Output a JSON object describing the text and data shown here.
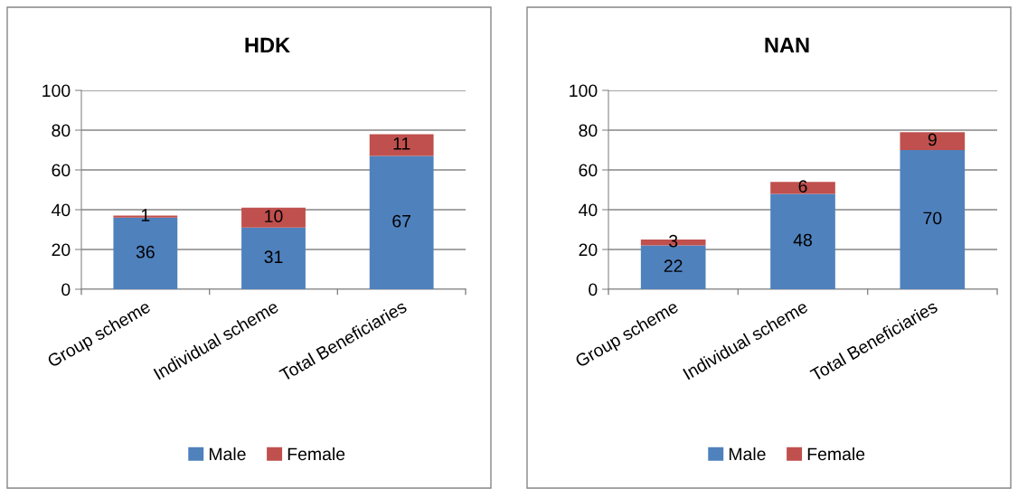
{
  "chart_data": [
    {
      "type": "bar",
      "title": "HDK",
      "categories": [
        "Group scheme",
        "Individual scheme",
        "Total Beneficiaries"
      ],
      "stacked": true,
      "data_labels": true,
      "ylim": [
        0,
        100
      ],
      "yticks": [
        0,
        20,
        40,
        60,
        80,
        100
      ],
      "grid": "y",
      "legend": "bottom",
      "series": [
        {
          "name": "Male",
          "color": "#4f81bd",
          "values": [
            36,
            31,
            67
          ]
        },
        {
          "name": "Female",
          "color": "#c0504d",
          "values": [
            1,
            10,
            11
          ]
        }
      ]
    },
    {
      "type": "bar",
      "title": "NAN",
      "categories": [
        "Group scheme",
        "Individual scheme",
        "Total Beneficiaries"
      ],
      "stacked": true,
      "data_labels": true,
      "ylim": [
        0,
        100
      ],
      "yticks": [
        0,
        20,
        40,
        60,
        80,
        100
      ],
      "grid": "y",
      "legend": "bottom",
      "series": [
        {
          "name": "Male",
          "color": "#4f81bd",
          "values": [
            22,
            48,
            70
          ]
        },
        {
          "name": "Female",
          "color": "#c0504d",
          "values": [
            3,
            6,
            9
          ]
        }
      ]
    }
  ]
}
